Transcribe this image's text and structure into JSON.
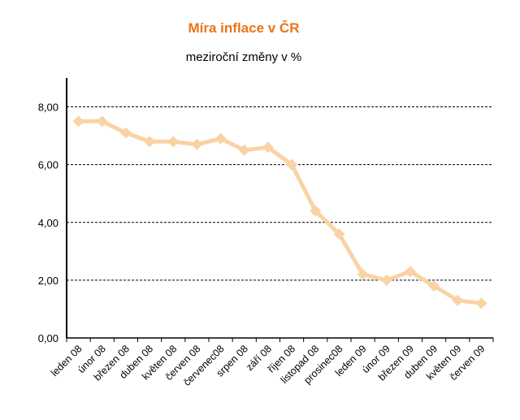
{
  "chart_data": {
    "type": "line",
    "title": "Míra inflace v ČR",
    "subtitle": "meziroční změny v %",
    "categories": [
      "leden 08",
      "únor 08",
      "březen 08",
      "duben 08",
      "květen 08",
      "červen 08",
      "červenec08",
      "srpen 08",
      "září 08",
      "říjen 08",
      "listopad 08",
      "prosinec08",
      "leden 09",
      "únor 09",
      "březen 09",
      "duben 09",
      "květen 09",
      "červen 09"
    ],
    "series": [
      {
        "values": [
          7.5,
          7.5,
          7.1,
          6.8,
          6.8,
          6.7,
          6.9,
          6.5,
          6.6,
          6.0,
          4.4,
          3.6,
          2.2,
          2.0,
          2.3,
          1.8,
          1.3,
          1.2
        ]
      }
    ],
    "yticks": [
      "0,00",
      "2,00",
      "4,00",
      "6,00",
      "8,00"
    ],
    "ylim": [
      0,
      9
    ],
    "grid": true,
    "colors": {
      "title": "#e8751a",
      "line": "#f9d3a4",
      "grid": "#000000",
      "axis": "#000000"
    }
  }
}
